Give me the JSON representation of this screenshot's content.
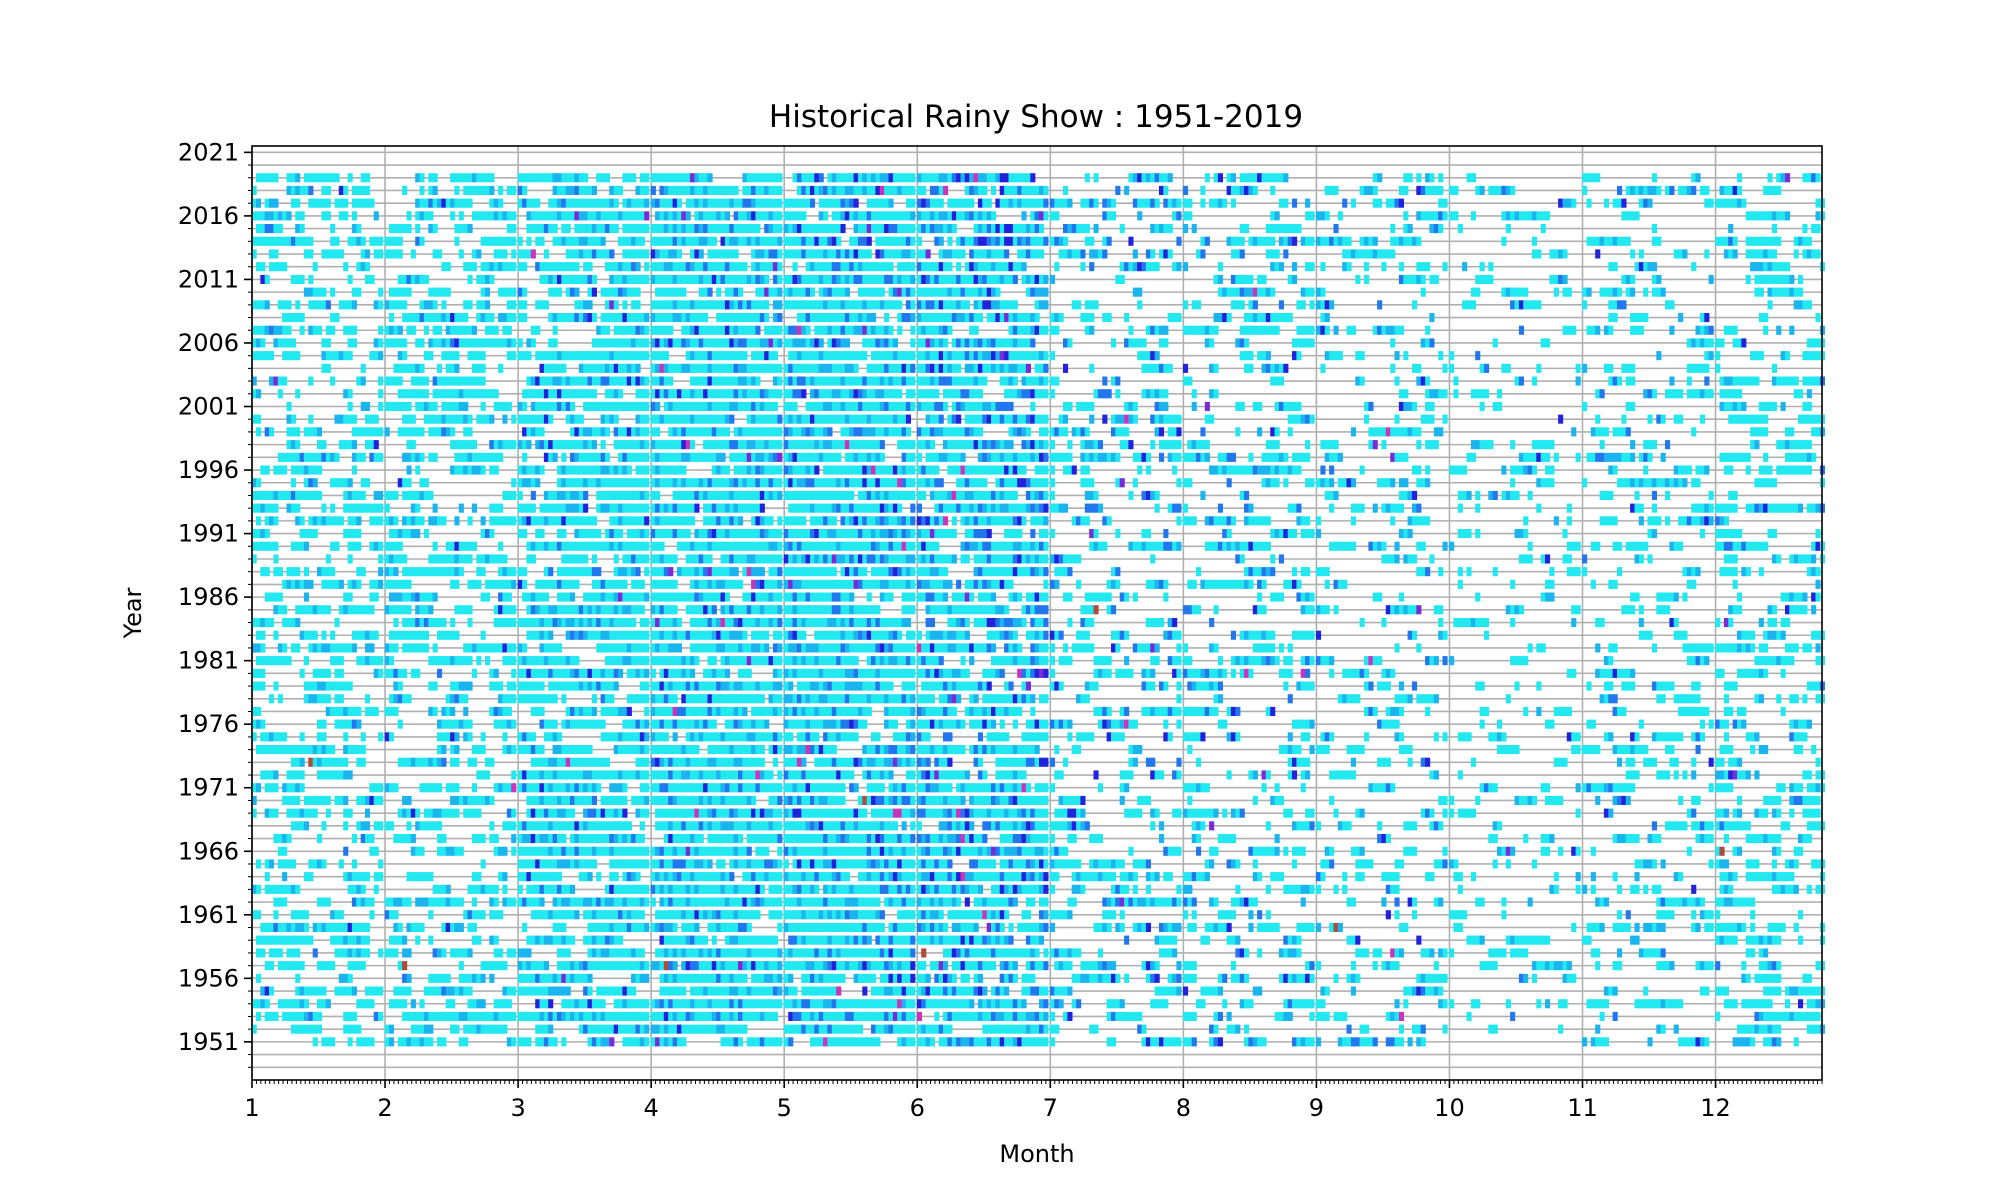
{
  "chart_data": {
    "type": "heatmap",
    "title": "Historical Rainy Show : 1951-2019",
    "xlabel": "Month",
    "ylabel": "Year",
    "x_ticks": [
      "1",
      "2",
      "3",
      "4",
      "5",
      "6",
      "7",
      "8",
      "9",
      "10",
      "11",
      "12"
    ],
    "y_ticks": [
      "1951",
      "1956",
      "1961",
      "1966",
      "1971",
      "1976",
      "1981",
      "1986",
      "1991",
      "1996",
      "2001",
      "2006",
      "2011",
      "2016",
      "2021"
    ],
    "xlim": [
      1,
      12.8
    ],
    "ylim": [
      1948,
      2021.5
    ],
    "year_range": [
      1951,
      2019
    ],
    "grid": true,
    "cell_colors": [
      "#22e8f0",
      "#1ab4ee",
      "#2277ee",
      "#2222dd",
      "#7a2bd8",
      "#cc33bb",
      "#b04a3a"
    ],
    "rainy_day_fraction_by_month": {
      "1": 0.42,
      "2": 0.45,
      "3": 0.58,
      "4": 0.65,
      "5": 0.68,
      "6": 0.6,
      "7": 0.36,
      "8": 0.36,
      "9": 0.34,
      "10": 0.28,
      "11": 0.33,
      "12": 0.38
    },
    "heavy_rain_share_by_month": {
      "1": 0.03,
      "2": 0.04,
      "3": 0.08,
      "4": 0.12,
      "5": 0.16,
      "6": 0.22,
      "7": 0.18,
      "8": 0.15,
      "9": 0.12,
      "10": 0.08,
      "11": 0.08,
      "12": 0.05
    }
  }
}
